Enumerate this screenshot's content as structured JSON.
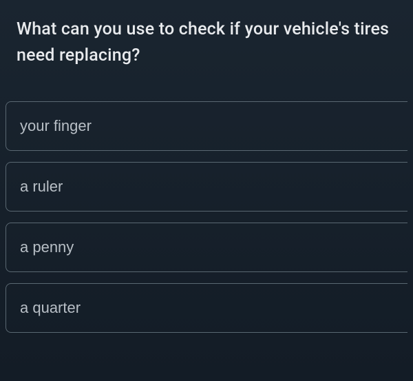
{
  "question": {
    "text": "What can you use to check if your vehicle's tires need replacing?"
  },
  "options": [
    {
      "label": "your finger"
    },
    {
      "label": "a ruler"
    },
    {
      "label": "a penny"
    },
    {
      "label": "a quarter"
    }
  ],
  "colors": {
    "background_top": "#1a2530",
    "background_bottom": "#131c26",
    "question_text": "#e8eaed",
    "option_text": "#b8bfc6",
    "option_border": "#5a6872"
  }
}
